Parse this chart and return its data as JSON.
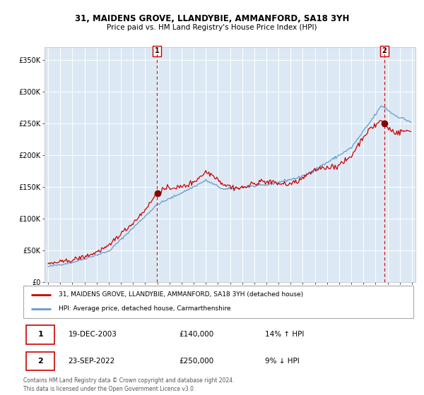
{
  "title": "31, MAIDENS GROVE, LLANDYBIE, AMMANFORD, SA18 3YH",
  "subtitle": "Price paid vs. HM Land Registry's House Price Index (HPI)",
  "legend_line1": "31, MAIDENS GROVE, LLANDYBIE, AMMANFORD, SA18 3YH (detached house)",
  "legend_line2": "HPI: Average price, detached house, Carmarthenshire",
  "sale1_date": "19-DEC-2003",
  "sale1_price": 140000,
  "sale1_label": "14% ↑ HPI",
  "sale2_date": "23-SEP-2022",
  "sale2_price": 250000,
  "sale2_label": "9% ↓ HPI",
  "footer": "Contains HM Land Registry data © Crown copyright and database right 2024.\nThis data is licensed under the Open Government Licence v3.0.",
  "ylim": [
    0,
    370000
  ],
  "yticks": [
    0,
    50000,
    100000,
    150000,
    200000,
    250000,
    300000,
    350000
  ],
  "ytick_labels": [
    "£0",
    "£50K",
    "£100K",
    "£150K",
    "£200K",
    "£250K",
    "£300K",
    "£350K"
  ],
  "bg_color": "#dce9f5",
  "line_color_red": "#cc0000",
  "line_color_blue": "#6699cc",
  "dot_color": "#880000",
  "vline_color": "#cc0000",
  "grid_color": "#ffffff",
  "sale1_year": 2003.96,
  "sale2_year": 2022.72,
  "xstart": 1995,
  "xend": 2025
}
